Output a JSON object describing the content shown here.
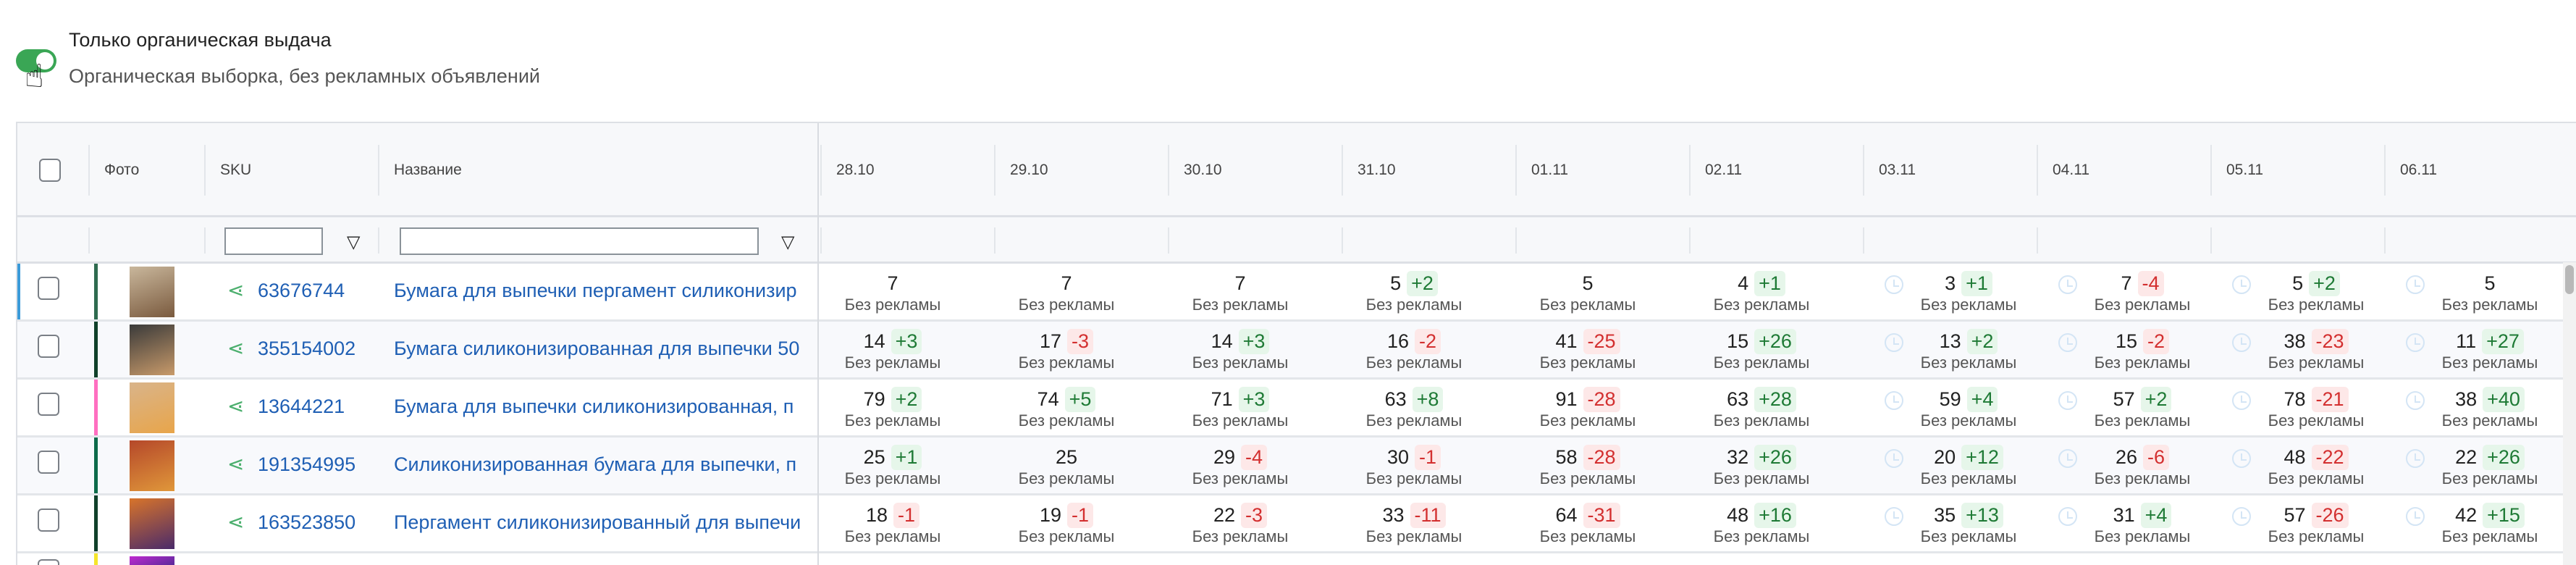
{
  "filter": {
    "title": "Только органическая выдача",
    "subtitle": "Органическая выборка, без рекламных объявлений",
    "toggle_on": true
  },
  "header": {
    "photo": "Фото",
    "sku": "SKU",
    "name": "Название",
    "dates": [
      "28.10",
      "29.10",
      "30.10",
      "31.10",
      "01.11",
      "02.11",
      "03.11",
      "04.11",
      "05.11",
      "06.11"
    ]
  },
  "cell_subtitle": "Без рекламы",
  "colors": {
    "up": "#1e7a35",
    "down": "#d32f2f",
    "link": "#1f5fb4",
    "toggle": "#3aa655"
  },
  "rows": [
    {
      "sku": "63676744",
      "name": "Бумага для выпечки пергамент силиконизир",
      "strip": "#2e6b4f",
      "selected": true,
      "photo": [
        "#7a5a3e",
        "#c9b79c"
      ],
      "cells": [
        [
          "7",
          ""
        ],
        [
          "7",
          ""
        ],
        [
          "7",
          ""
        ],
        [
          "5",
          "+2"
        ],
        [
          "5",
          ""
        ],
        [
          "4",
          "+1"
        ],
        [
          "3",
          "+1"
        ],
        [
          "7",
          "-4"
        ],
        [
          "5",
          "+2"
        ],
        [
          "5",
          ""
        ]
      ]
    },
    {
      "sku": "355154002",
      "name": "Бумага силиконизированная для выпечки 50",
      "strip": "#10402a",
      "selected": false,
      "photo": [
        "#c89a6a",
        "#3a3a3a"
      ],
      "cells": [
        [
          "14",
          "+3"
        ],
        [
          "17",
          "-3"
        ],
        [
          "14",
          "+3"
        ],
        [
          "16",
          "-2"
        ],
        [
          "41",
          "-25"
        ],
        [
          "15",
          "+26"
        ],
        [
          "13",
          "+2"
        ],
        [
          "15",
          "-2"
        ],
        [
          "38",
          "-23"
        ],
        [
          "11",
          "+27"
        ]
      ]
    },
    {
      "sku": "13644221",
      "name": "Бумага для выпечки силиконизированная, п",
      "strip": "#ff6fc0",
      "selected": false,
      "photo": [
        "#e8a54a",
        "#d9b48a"
      ],
      "cells": [
        [
          "79",
          "+2"
        ],
        [
          "74",
          "+5"
        ],
        [
          "71",
          "+3"
        ],
        [
          "63",
          "+8"
        ],
        [
          "91",
          "-28"
        ],
        [
          "63",
          "+28"
        ],
        [
          "59",
          "+4"
        ],
        [
          "57",
          "+2"
        ],
        [
          "78",
          "-21"
        ],
        [
          "38",
          "+40"
        ]
      ]
    },
    {
      "sku": "191354995",
      "name": "Силиконизированная бумага для выпечки, п",
      "strip": "#0d6b4a",
      "selected": false,
      "photo": [
        "#e0973a",
        "#b5482a"
      ],
      "cells": [
        [
          "25",
          "+1"
        ],
        [
          "25",
          ""
        ],
        [
          "29",
          "-4"
        ],
        [
          "30",
          "-1"
        ],
        [
          "58",
          "-28"
        ],
        [
          "32",
          "+26"
        ],
        [
          "20",
          "+12"
        ],
        [
          "26",
          "-6"
        ],
        [
          "48",
          "-22"
        ],
        [
          "22",
          "+26"
        ]
      ]
    },
    {
      "sku": "163523850",
      "name": "Пергамент силиконизированный для выпечи",
      "strip": "#10402a",
      "selected": false,
      "photo": [
        "#4a2a6a",
        "#d8742a"
      ],
      "cells": [
        [
          "18",
          "-1"
        ],
        [
          "19",
          "-1"
        ],
        [
          "22",
          "-3"
        ],
        [
          "33",
          "-11"
        ],
        [
          "64",
          "-31"
        ],
        [
          "48",
          "+16"
        ],
        [
          "35",
          "+13"
        ],
        [
          "31",
          "+4"
        ],
        [
          "57",
          "-26"
        ],
        [
          "42",
          "+15"
        ]
      ]
    }
  ]
}
